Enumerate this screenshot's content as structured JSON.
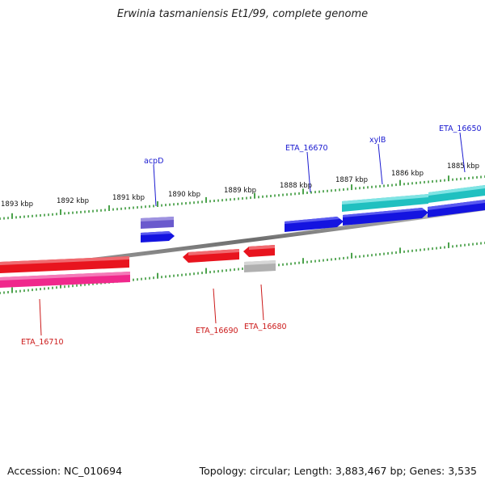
{
  "title": "Erwinia tasmaniensis Et1/99, complete genome",
  "accession_text": "Accession: NC_010694",
  "topology_text": "Topology: circular; Length: 3,883,467 bp; Genes: 3,535",
  "colors": {
    "backbone": "#808080",
    "ticks": "#1e8a1e",
    "plus_label": "#1a1ad0",
    "minus_label": "#cc1a1a",
    "blue_gene": "#1414e0",
    "purple_gene": "#6a5acd",
    "teal_gene": "#20c0c0",
    "red_gene": "#e8141e",
    "pink_gene": "#f0288c",
    "gray_gene": "#b0b0b0"
  },
  "scale_labels": [
    "1893 kbp",
    "1892 kbp",
    "1891 kbp",
    "1890 kbp",
    "1889 kbp",
    "1888 kbp",
    "1887 kbp",
    "1886 kbp",
    "1885 kbp"
  ],
  "gene_labels_plus": [
    "acpD",
    "ETA_16670",
    "xylB",
    "ETA_16650"
  ],
  "gene_labels_minus": [
    "ETA_16710",
    "ETA_16690",
    "ETA_16680"
  ]
}
